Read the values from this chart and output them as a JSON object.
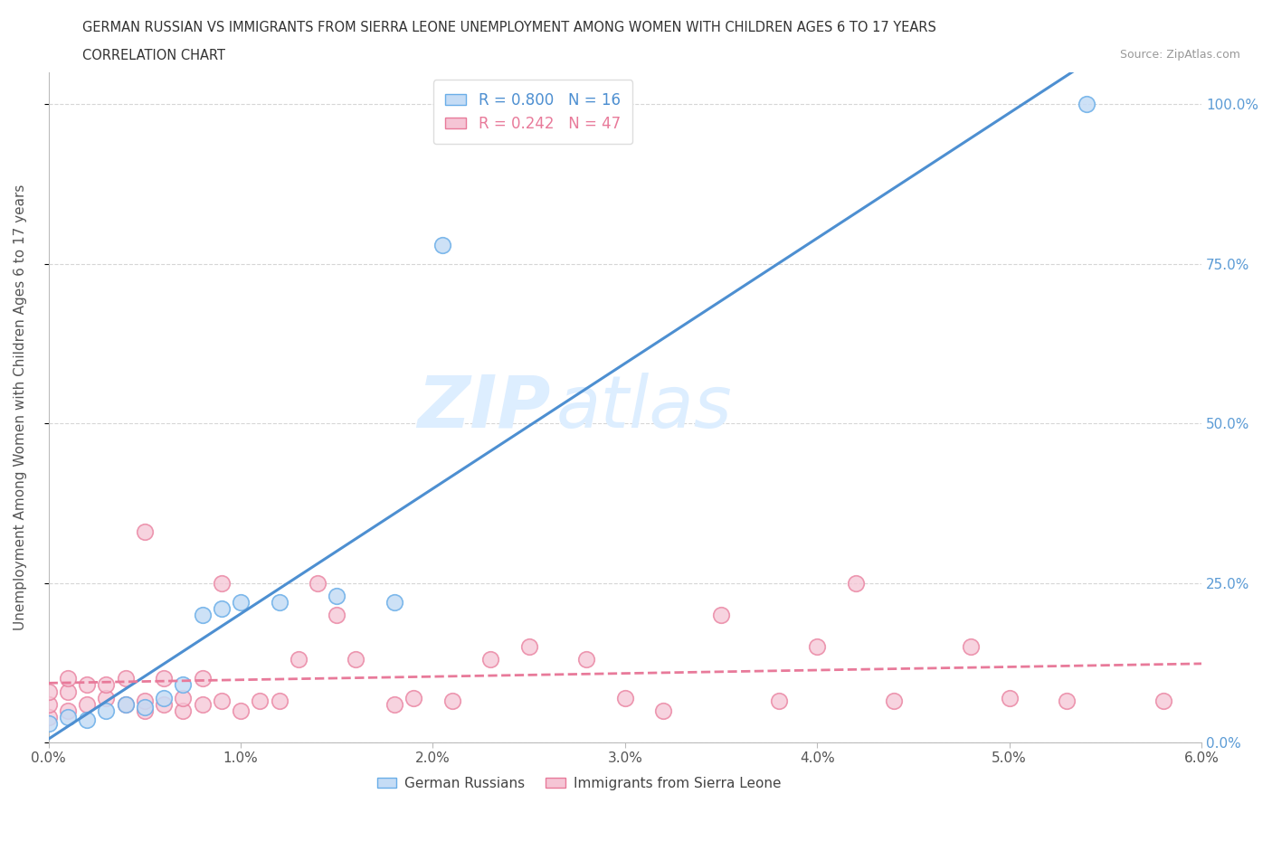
{
  "title_line1": "GERMAN RUSSIAN VS IMMIGRANTS FROM SIERRA LEONE UNEMPLOYMENT AMONG WOMEN WITH CHILDREN AGES 6 TO 17 YEARS",
  "title_line2": "CORRELATION CHART",
  "source": "Source: ZipAtlas.com",
  "ylabel": "Unemployment Among Women with Children Ages 6 to 17 years",
  "x_min": 0.0,
  "x_max": 0.06,
  "y_min": 0.0,
  "y_max": 1.05,
  "x_ticks": [
    0.0,
    0.01,
    0.02,
    0.03,
    0.04,
    0.05,
    0.06
  ],
  "x_tick_labels": [
    "0.0%",
    "1.0%",
    "2.0%",
    "3.0%",
    "4.0%",
    "5.0%",
    "6.0%"
  ],
  "y_ticks": [
    0.0,
    0.25,
    0.5,
    0.75,
    1.0
  ],
  "y_tick_labels_right": [
    "0.0%",
    "25.0%",
    "50.0%",
    "75.0%",
    "100.0%"
  ],
  "legend_r1": "R = 0.800",
  "legend_n1": "N = 16",
  "legend_r2": "R = 0.242",
  "legend_n2": "N = 47",
  "color_blue_fill": "#c5dcf5",
  "color_blue_edge": "#6aaee8",
  "color_blue_line": "#4d8fd1",
  "color_pink_fill": "#f5c5d5",
  "color_pink_edge": "#e87a9a",
  "color_pink_line": "#e87a9a",
  "color_right_axis": "#5b9bd5",
  "watermark_zip": "ZIP",
  "watermark_atlas": "atlas",
  "watermark_color": "#ddeeff",
  "background": "#ffffff",
  "grid_color": "#cccccc",
  "legend_bottom_blue": "German Russians",
  "legend_bottom_pink": "Immigrants from Sierra Leone",
  "gr_x": [
    0.0,
    0.001,
    0.002,
    0.003,
    0.004,
    0.005,
    0.006,
    0.007,
    0.008,
    0.009,
    0.01,
    0.012,
    0.015,
    0.018,
    0.0205,
    0.054
  ],
  "gr_y": [
    0.03,
    0.04,
    0.035,
    0.05,
    0.06,
    0.055,
    0.07,
    0.09,
    0.2,
    0.21,
    0.22,
    0.22,
    0.23,
    0.22,
    0.78,
    1.0
  ],
  "sl_x": [
    0.0,
    0.0,
    0.0,
    0.001,
    0.001,
    0.001,
    0.002,
    0.002,
    0.003,
    0.003,
    0.004,
    0.004,
    0.005,
    0.005,
    0.005,
    0.006,
    0.006,
    0.007,
    0.007,
    0.008,
    0.008,
    0.009,
    0.009,
    0.01,
    0.011,
    0.012,
    0.013,
    0.014,
    0.015,
    0.016,
    0.018,
    0.019,
    0.021,
    0.023,
    0.025,
    0.028,
    0.03,
    0.032,
    0.035,
    0.038,
    0.04,
    0.042,
    0.044,
    0.048,
    0.05,
    0.053,
    0.058
  ],
  "sl_y": [
    0.04,
    0.06,
    0.08,
    0.05,
    0.08,
    0.1,
    0.06,
    0.09,
    0.07,
    0.09,
    0.06,
    0.1,
    0.05,
    0.065,
    0.33,
    0.06,
    0.1,
    0.05,
    0.07,
    0.06,
    0.1,
    0.065,
    0.25,
    0.05,
    0.065,
    0.065,
    0.13,
    0.25,
    0.2,
    0.13,
    0.06,
    0.07,
    0.065,
    0.13,
    0.15,
    0.13,
    0.07,
    0.05,
    0.2,
    0.065,
    0.15,
    0.25,
    0.065,
    0.15,
    0.07,
    0.065,
    0.065
  ]
}
